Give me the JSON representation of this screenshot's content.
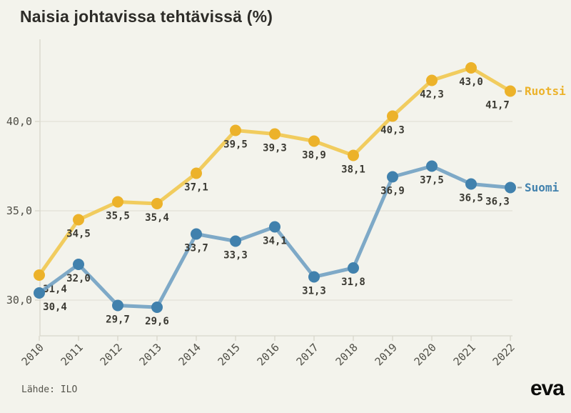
{
  "title": "Naisia johtavissa tehtävissä (%)",
  "footer": {
    "source": "Lähde: ILO",
    "logo": "eva"
  },
  "colors": {
    "background": "#f3f3ec",
    "title_text": "#2d2c28",
    "grid_line": "#e3e2d7",
    "axis_line": "#d8d7cb",
    "tick_text": "#504f47",
    "value_label_text": "#3a3932",
    "legend_dash": "#a9a69b",
    "ruotsi_marker": "#ecb22a",
    "ruotsi_line": "#f1c84f",
    "suomi_marker": "#4181ad",
    "suomi_line": "#71a1c3"
  },
  "chart_data": {
    "type": "line",
    "title": "Naisia johtavissa tehtävissä (%)",
    "xlabel": "",
    "ylabel": "",
    "grid": true,
    "legend_position": "right-of-last-point",
    "ylim": [
      28,
      44.6
    ],
    "categories": [
      "2010",
      "2011",
      "2012",
      "2013",
      "2014",
      "2015",
      "2016",
      "2017",
      "2018",
      "2019",
      "2020",
      "2021",
      "2022"
    ],
    "yticks": [
      {
        "value": 30,
        "label": "30,0"
      },
      {
        "value": 35,
        "label": "35,0"
      },
      {
        "value": 40,
        "label": "40,0"
      }
    ],
    "series": [
      {
        "name": "Ruotsi",
        "marker_color": "#ecb22a",
        "line_color": "#f1c84f",
        "values": [
          31.4,
          34.5,
          35.5,
          35.4,
          37.1,
          39.5,
          39.3,
          38.9,
          38.1,
          40.3,
          42.3,
          43.0,
          41.7
        ],
        "labels": [
          "31,4",
          "34,5",
          "35,5",
          "35,4",
          "37,1",
          "39,5",
          "39,3",
          "38,9",
          "38,1",
          "40,3",
          "42,3",
          "43,0",
          "41,7"
        ]
      },
      {
        "name": "Suomi",
        "marker_color": "#4181ad",
        "line_color": "#71a1c3",
        "values": [
          30.4,
          32.0,
          29.7,
          29.6,
          33.7,
          33.3,
          34.1,
          31.3,
          31.8,
          36.9,
          37.5,
          36.5,
          36.3
        ],
        "labels": [
          "30,4",
          "32,0",
          "29,7",
          "29,6",
          "33,7",
          "33,3",
          "34,1",
          "31,3",
          "31,8",
          "36,9",
          "37,5",
          "36,5",
          "36,3"
        ]
      }
    ]
  }
}
